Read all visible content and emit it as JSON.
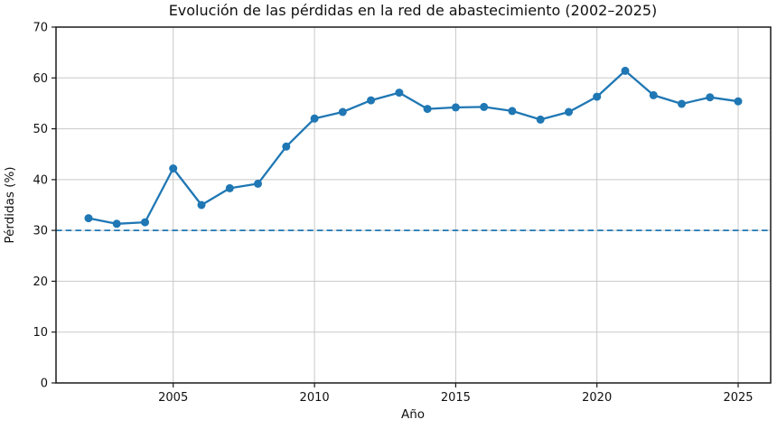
{
  "figure": {
    "background": "#ffffff",
    "axes_face_color": "#ffffff",
    "spine_color": "#1a1a1a",
    "text_color": "#111111"
  },
  "chart_data": {
    "type": "line",
    "title": "Evolución de las pérdidas en la red de abastecimiento (2002–2025)",
    "xlabel": "Año",
    "ylabel": "Pérdidas (%)",
    "x": [
      2002,
      2003,
      2004,
      2005,
      2006,
      2007,
      2008,
      2009,
      2010,
      2011,
      2012,
      2013,
      2014,
      2015,
      2016,
      2017,
      2018,
      2019,
      2020,
      2021,
      2022,
      2023,
      2024,
      2025
    ],
    "series": [
      {
        "name": "Pérdidas en la red",
        "values": [
          32.4,
          31.3,
          31.6,
          42.2,
          35.0,
          38.3,
          39.2,
          46.5,
          52.0,
          53.3,
          55.6,
          57.1,
          53.9,
          54.2,
          54.3,
          53.5,
          51.8,
          53.3,
          56.3,
          61.4,
          56.6,
          54.9,
          56.2,
          55.4
        ],
        "color": "#1f77b4",
        "marker": "circle",
        "line_style": "solid"
      }
    ],
    "reference_line": {
      "y": 30,
      "style": "dashed",
      "color": "#1f77b4"
    },
    "xlim": [
      2000.85,
      2026.15
    ],
    "ylim": [
      0,
      70
    ],
    "xticks": [
      2005,
      2010,
      2015,
      2020,
      2025
    ],
    "yticks": [
      0,
      10,
      20,
      30,
      40,
      50,
      60,
      70
    ],
    "grid": true,
    "grid_color": "#c8c8c8",
    "legend_position": "none"
  }
}
